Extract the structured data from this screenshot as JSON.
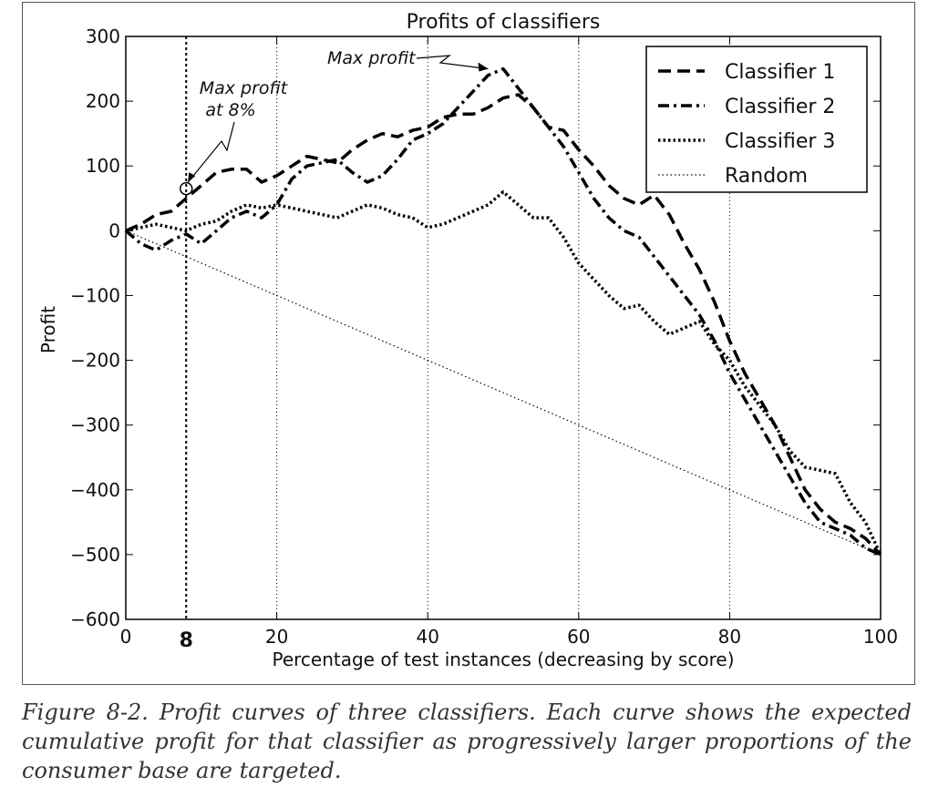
{
  "caption": "Figure 8-2. Profit curves of three classifiers. Each curve shows the expected cumulative profit for that classifier as progressively larger proportions of the consumer base are targeted.",
  "chart_data": {
    "type": "line",
    "title": "Profits of classifiers",
    "xlabel": "Percentage of test instances (decreasing by score)",
    "ylabel": "Profit",
    "xlim": [
      0,
      100
    ],
    "ylim": [
      -600,
      300
    ],
    "x_ticks": [
      0,
      20,
      40,
      60,
      80,
      100
    ],
    "y_ticks": [
      300,
      200,
      100,
      0,
      -100,
      -200,
      -300,
      -400,
      -500,
      -600
    ],
    "y_tick_labels": [
      "300",
      "200",
      "100",
      "0",
      "−100",
      "−200",
      "−300",
      "−400",
      "−500",
      "−600"
    ],
    "grid": "vertical dotted lines at x ticks",
    "legend_position": "top-right",
    "series": [
      {
        "name": "Classifier 1",
        "style": "dashed",
        "color": "#000000",
        "x": [
          0,
          2,
          4,
          6,
          8,
          10,
          12,
          14,
          16,
          18,
          20,
          22,
          24,
          26,
          28,
          30,
          32,
          34,
          36,
          38,
          40,
          42,
          44,
          46,
          48,
          50,
          52,
          54,
          56,
          58,
          60,
          62,
          64,
          66,
          68,
          70,
          72,
          74,
          76,
          78,
          80,
          82,
          84,
          86,
          88,
          90,
          92,
          94,
          96,
          98,
          100
        ],
        "y": [
          0,
          10,
          25,
          30,
          50,
          70,
          90,
          95,
          95,
          75,
          85,
          100,
          115,
          110,
          105,
          125,
          140,
          150,
          145,
          155,
          160,
          175,
          180,
          180,
          190,
          205,
          210,
          190,
          160,
          155,
          125,
          100,
          70,
          50,
          40,
          55,
          25,
          -20,
          -60,
          -110,
          -170,
          -220,
          -260,
          -300,
          -350,
          -400,
          -430,
          -450,
          -460,
          -475,
          -500
        ]
      },
      {
        "name": "Classifier 2",
        "style": "dashdot",
        "color": "#000000",
        "x": [
          0,
          2,
          4,
          6,
          8,
          10,
          12,
          14,
          16,
          18,
          20,
          22,
          24,
          26,
          28,
          30,
          32,
          34,
          36,
          38,
          40,
          42,
          44,
          46,
          48,
          50,
          52,
          54,
          56,
          58,
          60,
          62,
          64,
          66,
          68,
          70,
          72,
          74,
          76,
          78,
          80,
          82,
          84,
          86,
          88,
          90,
          92,
          94,
          96,
          98,
          100
        ],
        "y": [
          0,
          -20,
          -30,
          -15,
          -5,
          -20,
          0,
          20,
          30,
          20,
          40,
          80,
          100,
          105,
          110,
          90,
          75,
          85,
          110,
          140,
          150,
          165,
          190,
          215,
          240,
          250,
          220,
          190,
          160,
          130,
          90,
          50,
          20,
          0,
          -10,
          -40,
          -70,
          -100,
          -130,
          -170,
          -220,
          -260,
          -300,
          -340,
          -380,
          -420,
          -450,
          -460,
          -470,
          -490,
          -500
        ]
      },
      {
        "name": "Classifier 3",
        "style": "dotted",
        "color": "#000000",
        "x": [
          0,
          2,
          4,
          6,
          8,
          10,
          12,
          14,
          16,
          18,
          20,
          22,
          24,
          26,
          28,
          30,
          32,
          34,
          36,
          38,
          40,
          42,
          44,
          46,
          48,
          50,
          52,
          54,
          56,
          58,
          60,
          62,
          64,
          66,
          68,
          70,
          72,
          74,
          76,
          78,
          80,
          82,
          84,
          86,
          88,
          90,
          92,
          94,
          96,
          98,
          100
        ],
        "y": [
          0,
          5,
          10,
          5,
          0,
          10,
          15,
          30,
          40,
          35,
          40,
          35,
          30,
          25,
          20,
          30,
          40,
          35,
          25,
          20,
          5,
          10,
          20,
          30,
          40,
          60,
          40,
          20,
          20,
          -10,
          -50,
          -75,
          -100,
          -120,
          -115,
          -140,
          -160,
          -150,
          -140,
          -175,
          -200,
          -240,
          -270,
          -300,
          -340,
          -365,
          -370,
          -375,
          -420,
          -450,
          -500
        ]
      },
      {
        "name": "Random",
        "style": "finedotted",
        "color": "#000000",
        "x": [
          0,
          100
        ],
        "y": [
          0,
          -500
        ]
      }
    ],
    "annotations": [
      {
        "text": "Max profit",
        "x": 48,
        "y": 250
      },
      {
        "text": "Max profit",
        "text2": "at 8%",
        "x": 8,
        "y": 65
      }
    ],
    "marker_line": {
      "x": 8,
      "label": "8"
    }
  }
}
